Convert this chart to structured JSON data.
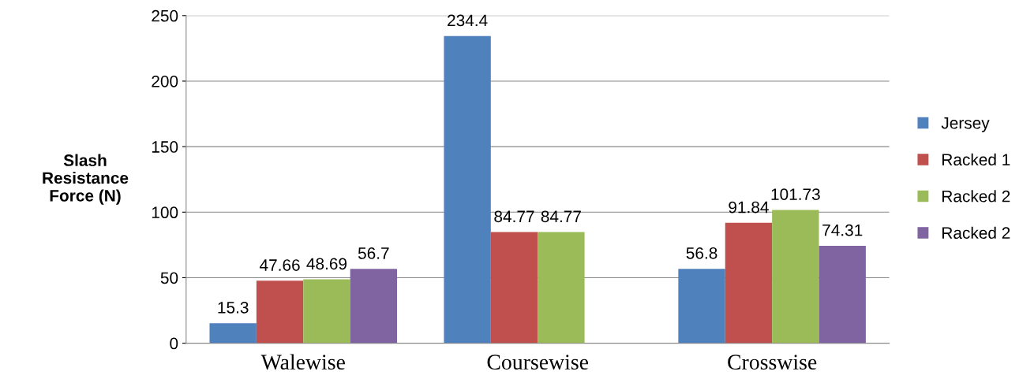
{
  "chart_data": {
    "type": "bar",
    "ylabel": "Slash\nResistance\nForce (N)",
    "categories": [
      "Walewise",
      "Coursewise",
      "Crosswise"
    ],
    "series": [
      {
        "name": "Jersey",
        "color": "#4f81bd",
        "values": [
          15.3,
          234.4,
          56.8
        ]
      },
      {
        "name": "Racked 1",
        "color": "#c0504d",
        "values": [
          47.66,
          84.77,
          91.84
        ]
      },
      {
        "name": "Racked 2",
        "color": "#9bbb59",
        "values": [
          48.69,
          84.77,
          101.73
        ]
      },
      {
        "name": "Racked 2",
        "color": "#8064a2",
        "values": [
          56.7,
          null,
          74.31
        ]
      }
    ],
    "ylim": [
      0,
      250
    ],
    "yticks": [
      0,
      50,
      100,
      150,
      200,
      250
    ],
    "grid": "y",
    "legend": "right",
    "data_labels": true
  }
}
